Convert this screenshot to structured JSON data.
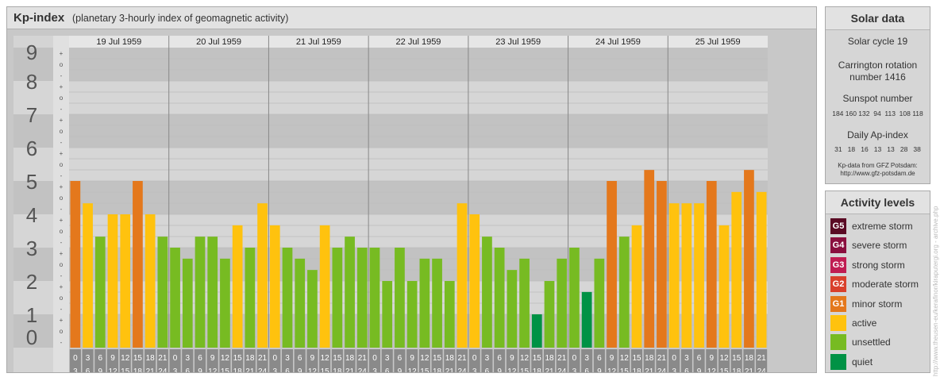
{
  "header": {
    "title": "Kp-index",
    "subtitle": "(planetary 3-hourly index of geomagnetic activity)"
  },
  "chart_data": {
    "type": "bar",
    "ylim": [
      0,
      9
    ],
    "y_labels": [
      "0",
      "1",
      "2",
      "3",
      "4",
      "5",
      "6",
      "7",
      "8",
      "9"
    ],
    "minor_labels": [
      "+",
      "o",
      "-"
    ],
    "grid": true,
    "days": [
      "19 Jul 1959",
      "20 Jul 1959",
      "21 Jul 1959",
      "22 Jul 1959",
      "23 Jul 1959",
      "24 Jul 1959",
      "25 Jul 1959"
    ],
    "time_bins": [
      [
        "0",
        "3"
      ],
      [
        "3",
        "6"
      ],
      [
        "6",
        "9"
      ],
      [
        "9",
        "12"
      ],
      [
        "12",
        "15"
      ],
      [
        "15",
        "18"
      ],
      [
        "18",
        "21"
      ],
      [
        "21",
        "24"
      ]
    ],
    "values": [
      [
        5.0,
        4.33,
        3.33,
        4.0,
        4.0,
        5.0,
        4.0,
        3.33
      ],
      [
        3.0,
        2.67,
        3.33,
        3.33,
        2.67,
        3.67,
        3.0,
        4.33
      ],
      [
        3.67,
        3.0,
        2.67,
        2.33,
        3.67,
        3.0,
        3.33,
        3.0
      ],
      [
        3.0,
        2.0,
        3.0,
        2.0,
        2.67,
        2.67,
        2.0,
        4.33
      ],
      [
        4.0,
        3.33,
        3.0,
        2.33,
        2.67,
        1.0,
        2.0,
        2.67
      ],
      [
        3.0,
        1.67,
        2.67,
        5.0,
        3.33,
        3.67,
        5.33,
        5.0
      ],
      [
        4.33,
        4.33,
        4.33,
        5.0,
        3.67,
        4.67,
        5.33,
        4.67
      ]
    ],
    "level_colors": {
      "quiet": "#009245",
      "unsettled": "#77bb22",
      "active": "#ffc20e",
      "minor_storm": "#e4781c",
      "moderate_storm": "#d9402b",
      "strong_storm": "#c01d52",
      "severe_storm": "#8a0f3e",
      "extreme_storm": "#5a0a24"
    }
  },
  "solar": {
    "title": "Solar data",
    "cycle": "Solar cycle 19",
    "carrington_line1": "Carrington rotation",
    "carrington_line2": "number 1416",
    "sunspot_label": "Sunspot number",
    "sunspot_values": "184 160 132  94  113  108 118",
    "ap_label": "Daily Ap-index",
    "ap_values": "31   18   16   13   13   28   38",
    "source_line1": "Kp-data from GFZ Potsdam:",
    "source_line2": "http://www.gfz-potsdam.de"
  },
  "activity": {
    "title": "Activity levels",
    "levels": [
      {
        "code": "G5",
        "label": "extreme storm",
        "color": "#5a0a24"
      },
      {
        "code": "G4",
        "label": "severe storm",
        "color": "#8a0f3e"
      },
      {
        "code": "G3",
        "label": "strong storm",
        "color": "#c01d52"
      },
      {
        "code": "G2",
        "label": "moderate storm",
        "color": "#d9402b"
      },
      {
        "code": "G1",
        "label": "minor storm",
        "color": "#e4781c"
      },
      {
        "code": "",
        "label": "active",
        "color": "#ffc20e"
      },
      {
        "code": "",
        "label": "unsettled",
        "color": "#77bb22"
      },
      {
        "code": "",
        "label": "quiet",
        "color": "#009245"
      }
    ]
  },
  "watermark": "http://www.theusen-eu/kerafinor/kiraputergi.org - archive.php"
}
